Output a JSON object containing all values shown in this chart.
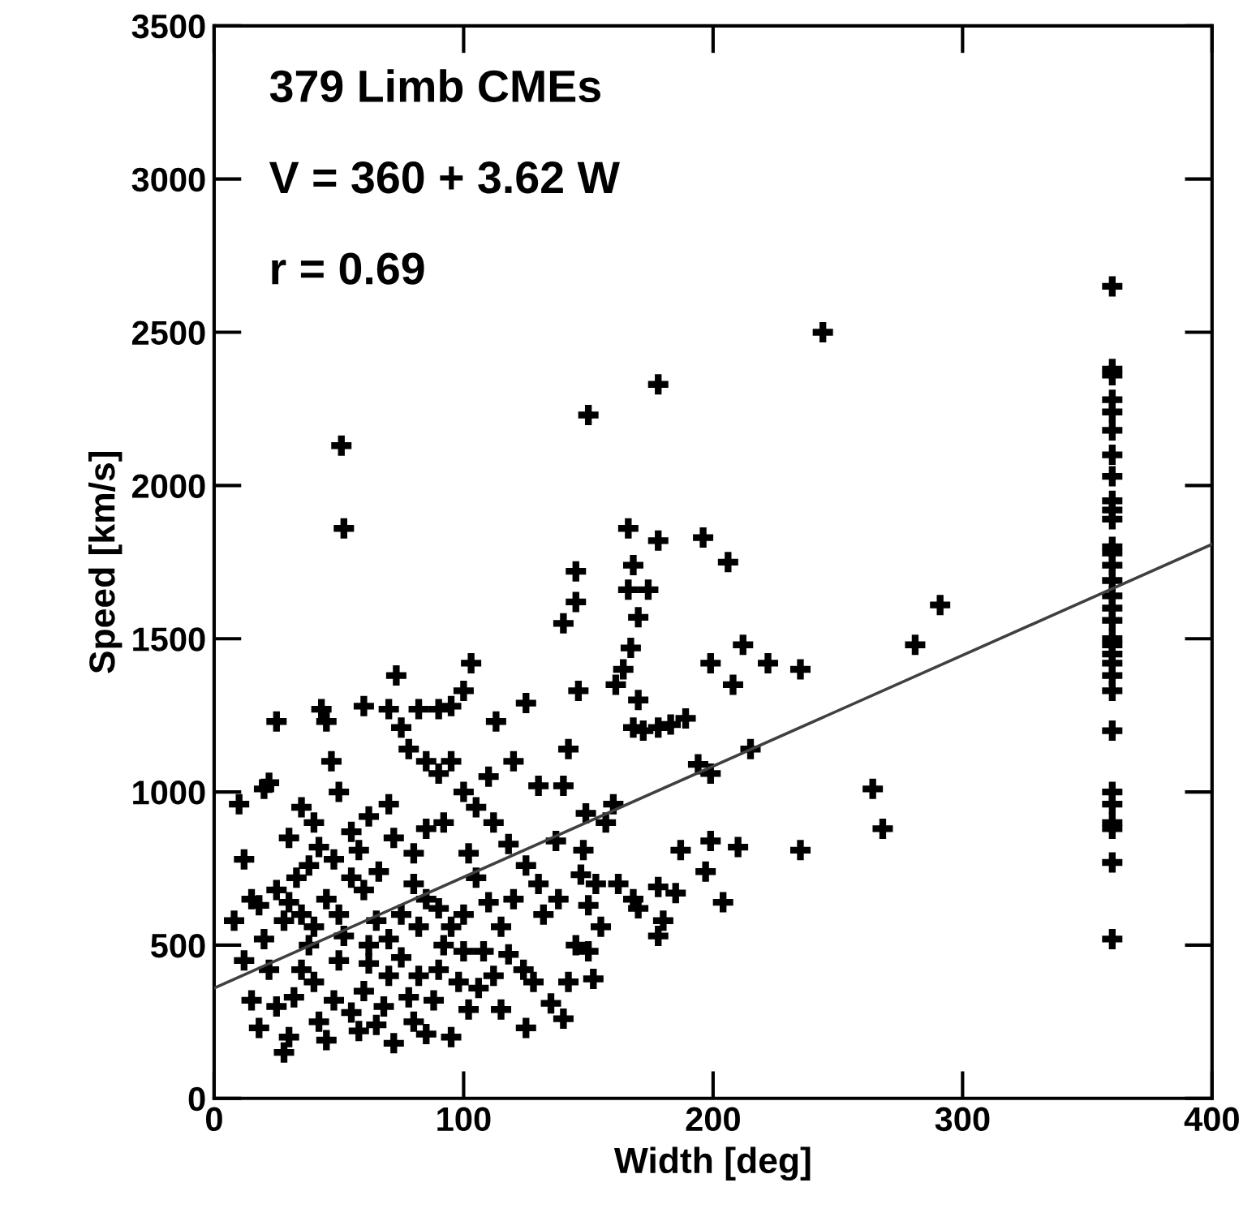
{
  "chart_data": {
    "type": "scatter",
    "xlabel": "Width [deg]",
    "ylabel": "Speed [km/s]",
    "annotations": [
      "379 Limb CMEs",
      "V = 360 + 3.62 W",
      "r = 0.69"
    ],
    "xlim": [
      0,
      400
    ],
    "ylim": [
      0,
      3500
    ],
    "xticks": [
      0,
      100,
      200,
      300,
      400
    ],
    "yticks": [
      0,
      500,
      1000,
      1500,
      2000,
      2500,
      3000,
      3500
    ],
    "grid": false,
    "legend": false,
    "series": [
      {
        "color": "#000000",
        "marker": "cross",
        "x": [
          51,
          52,
          150,
          178,
          244,
          166,
          178,
          196,
          206,
          145,
          145,
          168,
          166,
          174,
          170,
          140,
          146,
          167,
          164,
          161,
          170,
          199,
          222,
          235,
          212,
          281,
          291,
          168,
          172,
          178,
          183,
          189,
          194,
          199,
          215,
          208,
          264,
          268,
          235,
          199,
          210,
          187,
          178,
          180,
          178,
          185,
          197,
          204,
          162,
          168,
          170,
          160,
          157,
          148,
          147,
          153,
          155,
          150,
          152,
          145,
          138,
          137,
          140,
          142,
          149,
          130,
          125,
          120,
          113,
          110,
          103,
          100,
          95,
          90,
          82,
          73,
          70,
          60,
          75,
          78,
          85,
          90,
          95,
          100,
          105,
          112,
          118,
          125,
          130,
          120,
          115,
          108,
          112,
          115,
          125,
          128,
          132,
          92,
          85,
          80,
          70,
          62,
          55,
          50,
          45,
          43,
          47,
          40,
          35,
          30,
          25,
          20,
          22,
          12,
          10,
          8,
          15,
          18,
          25,
          30,
          35,
          40,
          45,
          50,
          55,
          60,
          65,
          70,
          75,
          80,
          85,
          90,
          95,
          100,
          105,
          110,
          20,
          22,
          25,
          28,
          30,
          32,
          35,
          38,
          40,
          42,
          45,
          48,
          50,
          52,
          55,
          58,
          60,
          62,
          65,
          68,
          70,
          72,
          75,
          78,
          80,
          82,
          85,
          88,
          90,
          95,
          98,
          100,
          102,
          15,
          18,
          12,
          28,
          33,
          38,
          42,
          48,
          58,
          62,
          66,
          72,
          82,
          92,
          102,
          106,
          118,
          124,
          135,
          140,
          142,
          150,
          360,
          360,
          360,
          360,
          360,
          360,
          360,
          360,
          360,
          360,
          360,
          360,
          360,
          360,
          360,
          360,
          360,
          360,
          360,
          360,
          360,
          360,
          360,
          360,
          360,
          360,
          360,
          360,
          360,
          360,
          360
        ],
        "values": [
          2130,
          1860,
          2230,
          2330,
          2500,
          1860,
          1820,
          1830,
          1750,
          1720,
          1620,
          1740,
          1660,
          1660,
          1570,
          1550,
          1330,
          1470,
          1400,
          1350,
          1300,
          1420,
          1420,
          1400,
          1480,
          1480,
          1610,
          1210,
          1200,
          1210,
          1220,
          1240,
          1090,
          1060,
          1140,
          1350,
          1010,
          880,
          810,
          840,
          820,
          810,
          690,
          580,
          530,
          670,
          740,
          640,
          700,
          650,
          620,
          960,
          900,
          810,
          730,
          700,
          560,
          480,
          390,
          500,
          650,
          840,
          1020,
          1140,
          930,
          1020,
          1290,
          1100,
          1230,
          1050,
          1420,
          1330,
          1280,
          1270,
          1270,
          1380,
          1270,
          1280,
          1210,
          1140,
          1100,
          1060,
          1100,
          1000,
          950,
          900,
          830,
          760,
          700,
          650,
          560,
          480,
          400,
          290,
          230,
          380,
          600,
          900,
          880,
          800,
          960,
          920,
          870,
          1000,
          1230,
          1270,
          1100,
          900,
          950,
          850,
          1230,
          1010,
          1030,
          780,
          960,
          580,
          650,
          630,
          680,
          640,
          600,
          560,
          650,
          600,
          720,
          680,
          580,
          520,
          600,
          700,
          650,
          620,
          560,
          600,
          720,
          640,
          520,
          420,
          300,
          150,
          200,
          330,
          420,
          500,
          380,
          250,
          190,
          320,
          450,
          530,
          280,
          220,
          350,
          440,
          240,
          300,
          400,
          180,
          460,
          330,
          250,
          400,
          210,
          320,
          420,
          200,
          380,
          480,
          290,
          320,
          230,
          450,
          580,
          720,
          760,
          820,
          780,
          810,
          500,
          740,
          850,
          560,
          500,
          800,
          360,
          470,
          420,
          310,
          260,
          380,
          630,
          2650,
          2380,
          2360,
          2280,
          2240,
          2180,
          2100,
          2030,
          1950,
          1920,
          1890,
          1800,
          1780,
          1740,
          1690,
          1640,
          1600,
          1560,
          1500,
          1480,
          1450,
          1420,
          1380,
          1330,
          1200,
          1000,
          960,
          900,
          880,
          770,
          520
        ]
      },
      {
        "type": "line",
        "color": "#404040",
        "line_style": "solid",
        "x": [
          0,
          400
        ],
        "values": [
          360,
          1808
        ]
      }
    ]
  }
}
